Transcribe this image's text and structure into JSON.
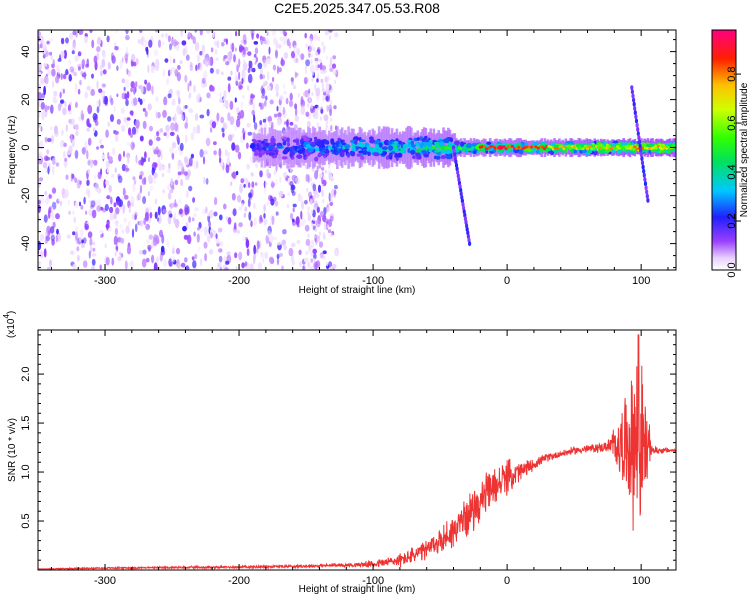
{
  "title": "C2E5.2025.347.05.53.R08",
  "chart_data": [
    {
      "type": "heatmap",
      "xlabel": "Height of straight line (km)",
      "ylabel": "Frequency (Hz)",
      "xlim": [
        -350,
        126
      ],
      "ylim": [
        -51,
        49
      ],
      "xticks": [
        -300,
        -200,
        -100,
        0,
        100
      ],
      "yticks": [
        -40,
        -20,
        0,
        20,
        40
      ],
      "colorbar": {
        "label": "Normalized spectral amplitude",
        "range": [
          0,
          0.98
        ],
        "ticks": [
          "0.0",
          "0.2",
          "0.4",
          "0.6",
          "0.8"
        ],
        "colormap": "rainbow (white, violet, blue, cyan, green, yellow, orange, red, magenta)"
      },
      "features": [
        {
          "name": "broadband low-amplitude noise",
          "x_range": [
            -350,
            -135
          ],
          "freq_range": [
            -51,
            49
          ],
          "amplitude": 0.1
        },
        {
          "name": "main band",
          "x_range": [
            -190,
            126
          ],
          "freq_center": 0,
          "amplitude_start": 0.25,
          "amplitude_end": 0.9
        },
        {
          "name": "peak",
          "x": -5,
          "freq": 0,
          "amplitude": 0.95
        },
        {
          "name": "diagonal streak",
          "x_range": [
            -40,
            -28
          ],
          "freq_range": [
            0,
            -40
          ],
          "amplitude": 0.2
        },
        {
          "name": "streak near 100 km",
          "x_range": [
            93,
            105
          ],
          "freq_range": [
            25,
            -22
          ],
          "amplitude": 0.2
        }
      ]
    },
    {
      "type": "line",
      "xlabel": "Height of straight line (km)",
      "ylabel": "SNR (10 * v/v)",
      "yscale_label": "(x10",
      "yscale_exp": "4",
      "xlim": [
        -350,
        126
      ],
      "ylim": [
        0,
        2.45
      ],
      "xticks": [
        -300,
        -200,
        -100,
        0,
        100
      ],
      "yticks": [
        "0.5",
        "1.0",
        "1.5",
        "2.0"
      ],
      "color": "#ee3333",
      "envelope": {
        "x": [
          -350,
          -300,
          -200,
          -150,
          -120,
          -100,
          -80,
          -60,
          -50,
          -40,
          -30,
          -20,
          -10,
          0,
          10,
          20,
          30,
          50,
          70,
          80,
          90,
          95,
          100,
          105,
          110,
          126
        ],
        "y": [
          0.01,
          0.02,
          0.03,
          0.04,
          0.05,
          0.06,
          0.1,
          0.2,
          0.3,
          0.4,
          0.55,
          0.7,
          0.85,
          0.95,
          1.0,
          1.08,
          1.15,
          1.22,
          1.25,
          1.27,
          1.3,
          1.3,
          1.28,
          1.25,
          1.22,
          1.22
        ]
      },
      "noise": {
        "x": [
          -350,
          -120,
          -100,
          -80,
          -60,
          -40,
          -20,
          0,
          20,
          40,
          60,
          75,
          82,
          90,
          96,
          100,
          104,
          108,
          126
        ],
        "amplitude": [
          0.005,
          0.02,
          0.04,
          0.08,
          0.12,
          0.2,
          0.25,
          0.2,
          0.06,
          0.04,
          0.05,
          0.06,
          0.3,
          0.6,
          1.1,
          1.0,
          0.5,
          0.05,
          0.02
        ]
      },
      "peak": {
        "x": 98,
        "y": 2.4
      }
    }
  ]
}
